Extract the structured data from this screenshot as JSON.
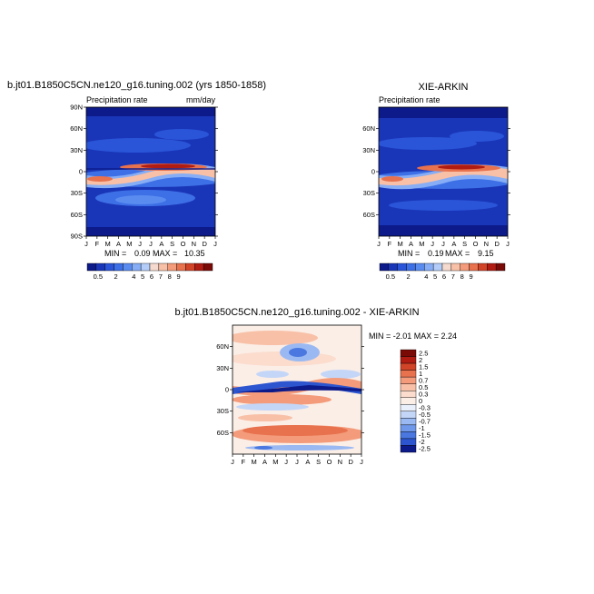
{
  "chart_data": [
    {
      "type": "heatmap",
      "title": "b.jt01.B1850C5CN.ne120_g16.tuning.002 (yrs 1850-1858)",
      "subtitle_left": "Precipitation rate",
      "subtitle_right": "mm/day",
      "x_ticks": [
        "J",
        "F",
        "M",
        "A",
        "M",
        "J",
        "J",
        "A",
        "S",
        "O",
        "N",
        "D",
        "J"
      ],
      "y_ticks": [
        "90N",
        "60N",
        "30N",
        "0",
        "30S",
        "60S",
        "90S"
      ],
      "stats": {
        "min_label": "MIN =",
        "min": "0.09",
        "max_label": "MAX =",
        "max": "10.35"
      },
      "colorbar_labels": [
        "0.5",
        "2",
        "4",
        "5",
        "6",
        "7",
        "8",
        "9"
      ],
      "ylim": [
        -90,
        90
      ]
    },
    {
      "type": "heatmap",
      "title": "XIE-ARKIN",
      "subtitle_left": "Precipitation rate",
      "x_ticks": [
        "J",
        "F",
        "M",
        "A",
        "M",
        "J",
        "J",
        "A",
        "S",
        "O",
        "N",
        "D",
        "J"
      ],
      "y_ticks": [
        "60N",
        "30N",
        "0",
        "30S",
        "60S"
      ],
      "stats": {
        "min_label": "MIN =",
        "min": "0.19",
        "max_label": "MAX =",
        "max": "9.15"
      },
      "colorbar_labels": [
        "0.5",
        "2",
        "4",
        "5",
        "6",
        "7",
        "8",
        "9"
      ],
      "ylim": [
        -90,
        90
      ]
    },
    {
      "type": "heatmap",
      "title": "b.jt01.B1850C5CN.ne120_g16.tuning.002 - XIE-ARKIN",
      "x_ticks": [
        "J",
        "F",
        "M",
        "A",
        "M",
        "J",
        "J",
        "A",
        "S",
        "O",
        "N",
        "D",
        "J"
      ],
      "y_ticks": [
        "60N",
        "30N",
        "0",
        "30S",
        "60S"
      ],
      "stats_text": "MIN = -2.01 MAX = 2.24",
      "colorbar_labels": [
        "2.5",
        "2",
        "1.5",
        "1",
        "0.7",
        "0.5",
        "0.3",
        "0",
        "-0.3",
        "-0.5",
        "-0.7",
        "-1",
        "-1.5",
        "-2",
        "-2.5"
      ],
      "ylim": [
        -90,
        90
      ]
    }
  ],
  "colors": {
    "abs_scale": [
      "#0c1a8a",
      "#1a36b8",
      "#2a55d8",
      "#3d6fe6",
      "#5a8cf0",
      "#86adf5",
      "#b4cdf8",
      "#f5dbcf",
      "#f8c0a7",
      "#f39b7a",
      "#e8714e",
      "#d24428",
      "#b01c12",
      "#7a0a06"
    ],
    "diff_scale": [
      "#7a0a06",
      "#b01c12",
      "#d24428",
      "#e8714e",
      "#f39b7a",
      "#f8c0a7",
      "#fbdccd",
      "#fbeee7",
      "#eaf0fb",
      "#c4d6f7",
      "#9ab9f2",
      "#6f98ea",
      "#4a78e0",
      "#2c55cf",
      "#0c1a8a"
    ]
  }
}
